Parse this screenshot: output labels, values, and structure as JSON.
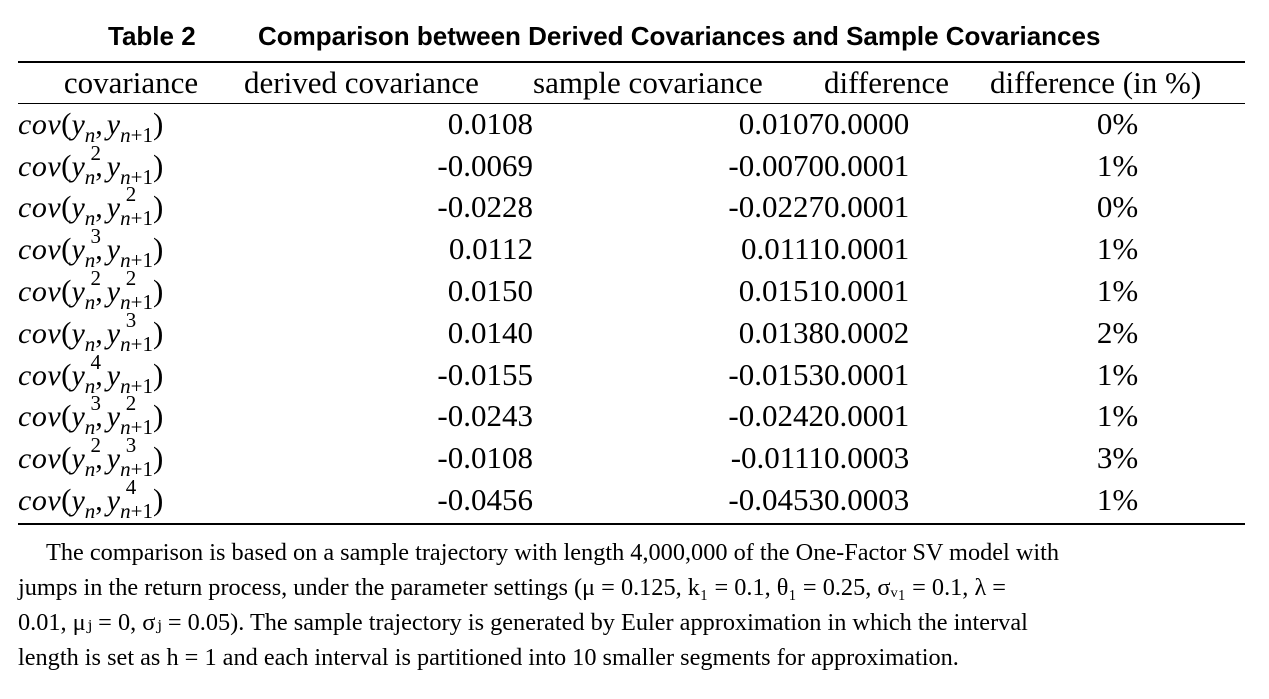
{
  "caption": {
    "label": "Table 2",
    "title": "Comparison between Derived Covariances and Sample Covariances"
  },
  "table": {
    "headers": [
      "covariance",
      "derived covariance",
      "sample covariance",
      "difference",
      "difference (in %)"
    ],
    "rows": [
      {
        "covariance": "cov(yn, yn+1)",
        "left_power": "",
        "right_power": "",
        "derived": "0.0108",
        "sample": "0.0107",
        "difference": "0.0000",
        "difference_pct": "0%"
      },
      {
        "covariance": "cov(yn2, yn+1)",
        "left_power": "2",
        "right_power": "",
        "derived": "-0.0069",
        "sample": "-0.0070",
        "difference": "0.0001",
        "difference_pct": "1%"
      },
      {
        "covariance": "cov(yn, yn+12)",
        "left_power": "",
        "right_power": "2",
        "derived": "-0.0228",
        "sample": "-0.0227",
        "difference": "0.0001",
        "difference_pct": "0%"
      },
      {
        "covariance": "cov(yn3, yn+1)",
        "left_power": "3",
        "right_power": "",
        "derived": "0.0112",
        "sample": "0.0111",
        "difference": "0.0001",
        "difference_pct": "1%"
      },
      {
        "covariance": "cov(yn2, yn+12)",
        "left_power": "2",
        "right_power": "2",
        "derived": "0.0150",
        "sample": "0.0151",
        "difference": "0.0001",
        "difference_pct": "1%"
      },
      {
        "covariance": "cov(yn, yn+13)",
        "left_power": "",
        "right_power": "3",
        "derived": "0.0140",
        "sample": "0.0138",
        "difference": "0.0002",
        "difference_pct": "2%"
      },
      {
        "covariance": "cov(yn4, yn+1)",
        "left_power": "4",
        "right_power": "",
        "derived": "-0.0155",
        "sample": "-0.0153",
        "difference": "0.0001",
        "difference_pct": "1%"
      },
      {
        "covariance": "cov(yn3, yn+12)",
        "left_power": "3",
        "right_power": "2",
        "derived": "-0.0243",
        "sample": "-0.0242",
        "difference": "0.0001",
        "difference_pct": "1%"
      },
      {
        "covariance": "cov(yn2, yn+13)",
        "left_power": "2",
        "right_power": "3",
        "derived": "-0.0108",
        "sample": "-0.0111",
        "difference": "0.0003",
        "difference_pct": "3%"
      },
      {
        "covariance": "cov(yn, yn+14)",
        "left_power": "",
        "right_power": "4",
        "derived": "-0.0456",
        "sample": "-0.0453",
        "difference": "0.0003",
        "difference_pct": "1%"
      }
    ]
  },
  "note": {
    "lines": [
      "The comparison is based on a sample trajectory with length 4,000,000 of the One-Factor SV model with",
      "jumps in the return process, under the parameter settings (μ = 0.125, k₁ = 0.1, θ₁ = 0.25, σᵥ₁ = 0.1, λ =",
      "0.01, μⱼ = 0, σⱼ = 0.05). The sample trajectory is generated by Euler approximation in which the interval",
      "length is set as h = 1 and each interval is partitioned into 10 smaller segments for approximation."
    ]
  }
}
